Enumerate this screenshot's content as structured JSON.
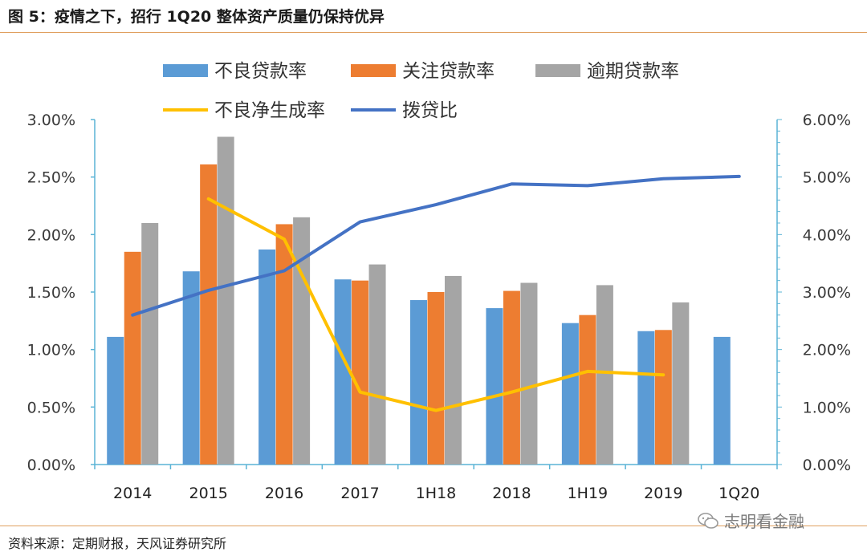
{
  "figure_title": "图 5：疫情之下，招行 1Q20 整体资产质量仍保持优异",
  "source": "资料来源：定期财报，天风证券研究所",
  "watermark": "志明看金融",
  "colors": {
    "npl": "#5b9bd5",
    "attention": "#ed7d31",
    "overdue": "#a5a5a5",
    "new_npl": "#ffc000",
    "coverage": "#4472c4",
    "rule": "#e0a060"
  },
  "chart_data": {
    "type": "bar",
    "categories": [
      "2014",
      "2015",
      "2016",
      "2017",
      "1H18",
      "2018",
      "1H19",
      "2019",
      "1Q20"
    ],
    "series": [
      {
        "name": "不良贷款率",
        "type": "bar",
        "axis": "left",
        "color_key": "npl",
        "values": [
          1.11,
          1.68,
          1.87,
          1.61,
          1.43,
          1.36,
          1.23,
          1.16,
          1.11
        ]
      },
      {
        "name": "关注贷款率",
        "type": "bar",
        "axis": "left",
        "color_key": "attention",
        "values": [
          1.85,
          2.61,
          2.09,
          1.6,
          1.5,
          1.51,
          1.3,
          1.17,
          null
        ]
      },
      {
        "name": "逾期贷款率",
        "type": "bar",
        "axis": "left",
        "color_key": "overdue",
        "values": [
          2.1,
          2.85,
          2.15,
          1.74,
          1.64,
          1.58,
          1.56,
          1.41,
          null
        ]
      },
      {
        "name": "不良净生成率",
        "type": "line",
        "axis": "left",
        "color_key": "new_npl",
        "values": [
          null,
          2.31,
          1.96,
          0.63,
          0.47,
          0.63,
          0.81,
          0.78,
          null
        ]
      },
      {
        "name": "拨贷比",
        "type": "line",
        "axis": "right",
        "color_key": "coverage",
        "values": [
          2.6,
          3.03,
          3.37,
          4.22,
          4.52,
          4.88,
          4.85,
          4.97,
          5.01
        ]
      }
    ],
    "ylim_left": [
      0,
      3.0
    ],
    "ylim_right": [
      0,
      6.0
    ],
    "yticks_left": [
      "0.00%",
      "0.50%",
      "1.00%",
      "1.50%",
      "2.00%",
      "2.50%",
      "3.00%"
    ],
    "yticks_right": [
      "0.00%",
      "1.00%",
      "2.00%",
      "3.00%",
      "4.00%",
      "5.00%",
      "6.00%"
    ],
    "legend_position": "top",
    "xlabel": "",
    "ylabel": ""
  }
}
